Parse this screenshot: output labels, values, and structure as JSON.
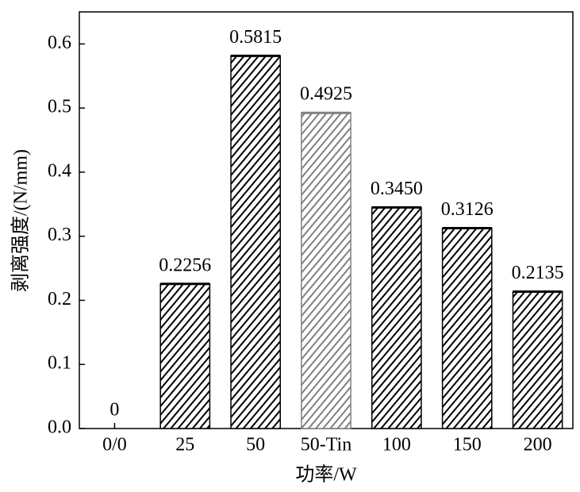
{
  "chart_data": {
    "type": "bar",
    "x_label": "功率/W",
    "y_label": "剥离强度/(N/mm)",
    "categories": [
      "0/0",
      "25",
      "50",
      "50-Tin",
      "100",
      "150",
      "200"
    ],
    "values": [
      0,
      0.2256,
      0.5815,
      0.4925,
      0.345,
      0.3126,
      0.2135
    ],
    "value_labels": [
      "0",
      "0.2256",
      "0.5815",
      "0.4925",
      "0.3450",
      "0.3126",
      "0.2135"
    ],
    "colors": [
      "#000000",
      "#000000",
      "#000000",
      "#808080",
      "#000000",
      "#000000",
      "#000000"
    ],
    "ylim": [
      0,
      0.65
    ],
    "yticks": [
      {
        "value": 0,
        "label": "0.0"
      },
      0.1,
      0.2,
      0.3,
      0.4,
      0.5,
      0.6
    ]
  }
}
